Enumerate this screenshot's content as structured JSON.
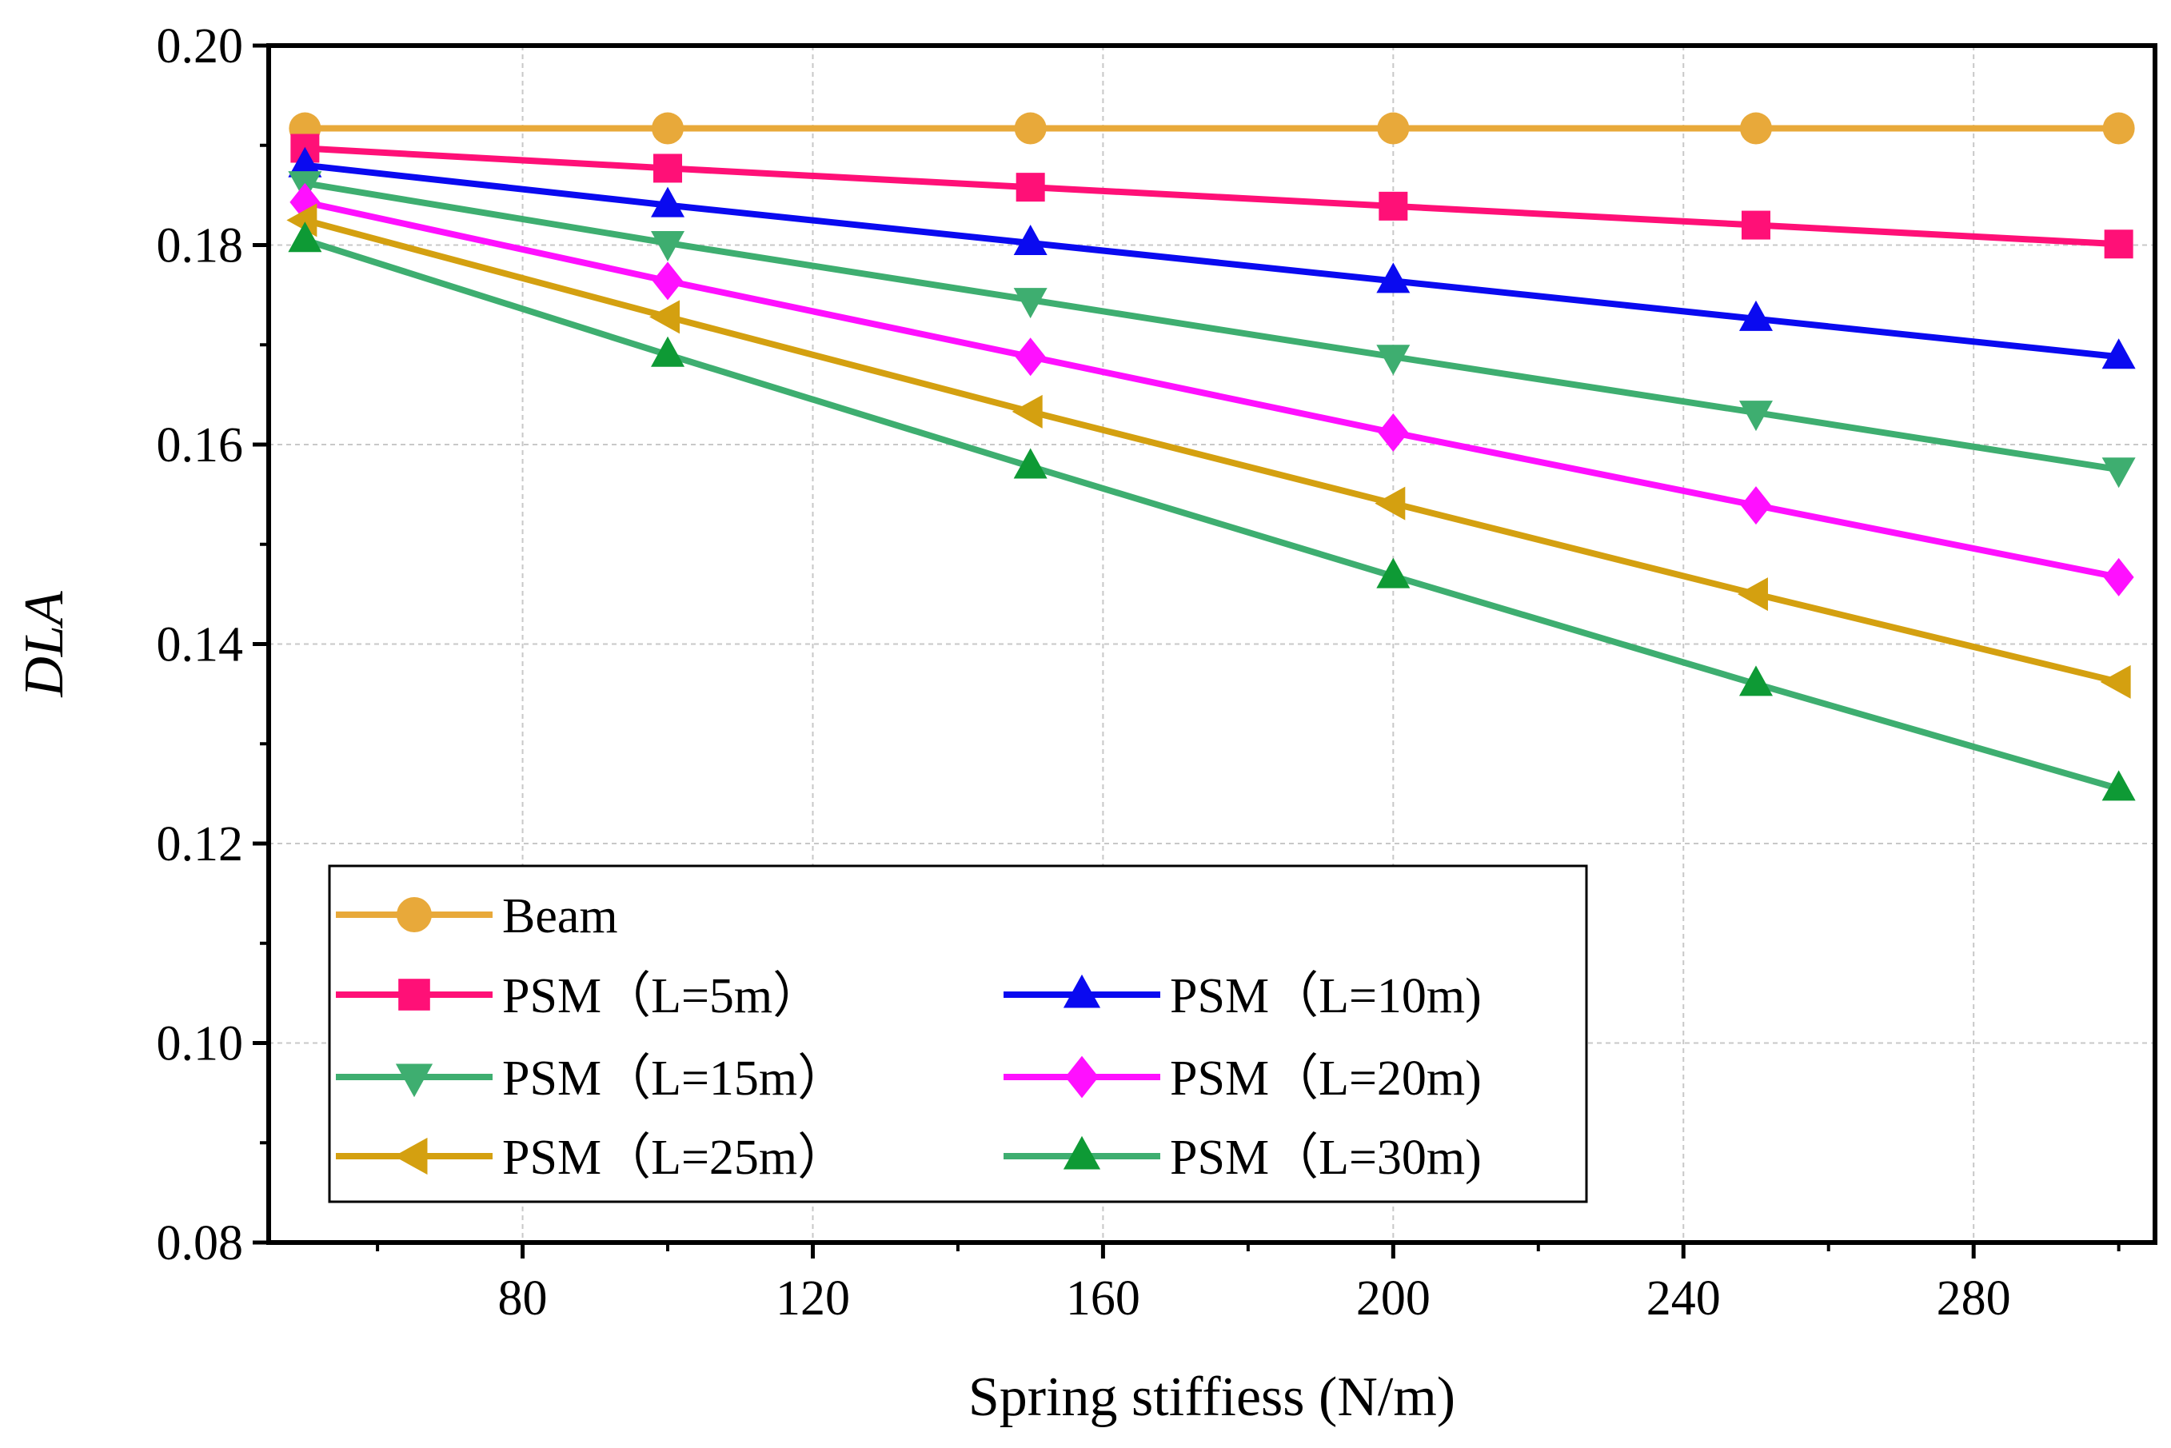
{
  "chart_data": {
    "type": "line",
    "title": "",
    "xlabel": "Spring stiffiess (N/m)",
    "ylabel": "DLA",
    "xlim": [
      45,
      305
    ],
    "ylim": [
      0.08,
      0.2
    ],
    "x_ticks": [
      80,
      120,
      160,
      200,
      240,
      280
    ],
    "x_tick_labels": [
      "80",
      "120",
      "160",
      "200",
      "240",
      "280"
    ],
    "y_ticks": [
      0.08,
      0.1,
      0.12,
      0.14,
      0.16,
      0.18,
      0.2
    ],
    "y_tick_labels": [
      "0.08",
      "0.10",
      "0.12",
      "0.14",
      "0.16",
      "0.18",
      "0.20"
    ],
    "grid": true,
    "legend_position": "bottom-left",
    "x": [
      50,
      100,
      150,
      200,
      250,
      300
    ],
    "series": [
      {
        "name": "Beam",
        "marker": "circle",
        "color": "#E8A93A",
        "values": [
          0.1917,
          0.1917,
          0.1917,
          0.1917,
          0.1917,
          0.1917
        ]
      },
      {
        "name": "PSM（L=5m）",
        "marker": "square",
        "color": "#FF1077",
        "values": [
          0.1897,
          0.1877,
          0.1858,
          0.1839,
          0.182,
          0.1801
        ]
      },
      {
        "name": "PSM（L=10m)",
        "marker": "triangle-up",
        "color": "#0A0AF0",
        "values": [
          0.188,
          0.184,
          0.1802,
          0.1764,
          0.1726,
          0.1688
        ]
      },
      {
        "name": "PSM（L=15m）",
        "marker": "triangle-down",
        "color": "#3EAE70",
        "values": [
          0.1862,
          0.1802,
          0.1745,
          0.1688,
          0.1632,
          0.1575
        ]
      },
      {
        "name": "PSM（L=20m)",
        "marker": "diamond",
        "color": "#FF10FF",
        "values": [
          0.1843,
          0.1764,
          0.1688,
          0.1612,
          0.1539,
          0.1467
        ]
      },
      {
        "name": "PSM（L=25m）",
        "marker": "triangle-left",
        "color": "#D4A010",
        "values": [
          0.1825,
          0.1728,
          0.1633,
          0.1541,
          0.145,
          0.1362
        ]
      },
      {
        "name": "PSM（L=30m)",
        "marker": "triangle-up",
        "color": "#0E9A35",
        "line_color": "#3EAE70",
        "values": [
          0.1805,
          0.169,
          0.1578,
          0.1468,
          0.136,
          0.1255
        ]
      }
    ]
  }
}
